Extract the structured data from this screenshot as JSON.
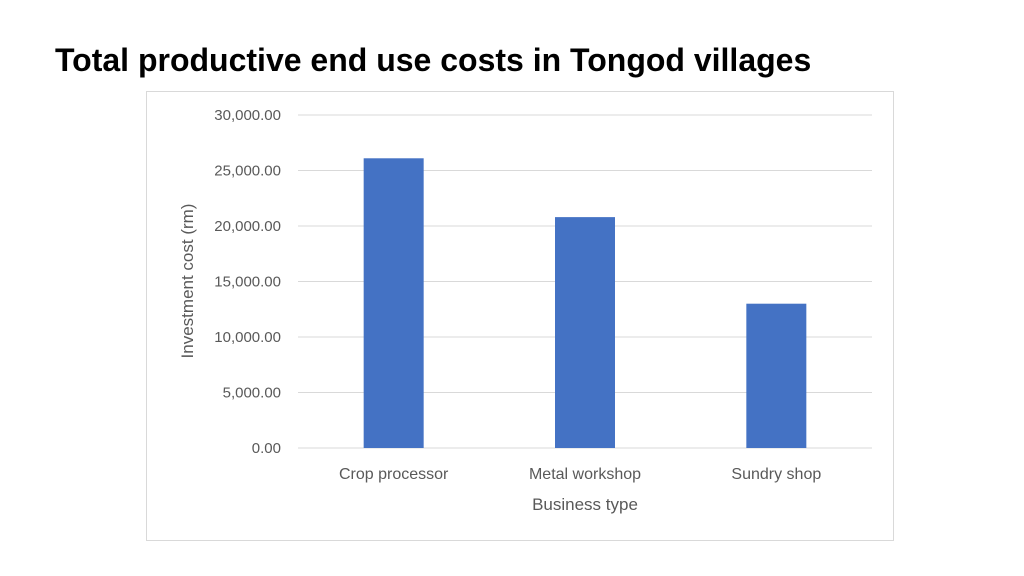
{
  "slide": {
    "title": "Total productive end use costs in Tongod villages"
  },
  "chart_data": {
    "type": "bar",
    "title": "",
    "xlabel": "Business type",
    "ylabel": "Investment cost (rm)",
    "categories": [
      "Crop processor",
      "Metal workshop",
      "Sundry shop"
    ],
    "values": [
      26100,
      20800,
      13000
    ],
    "ylim": [
      0,
      30000
    ],
    "yticks": [
      0,
      5000,
      10000,
      15000,
      20000,
      25000,
      30000
    ],
    "ytick_labels": [
      "0.00",
      "5,000.00",
      "10,000.00",
      "15,000.00",
      "20,000.00",
      "25,000.00",
      "30,000.00"
    ],
    "grid": true,
    "legend": "none",
    "bar_color": "#4472c4",
    "grid_color": "#d9d9d9",
    "text_color": "#595959"
  }
}
